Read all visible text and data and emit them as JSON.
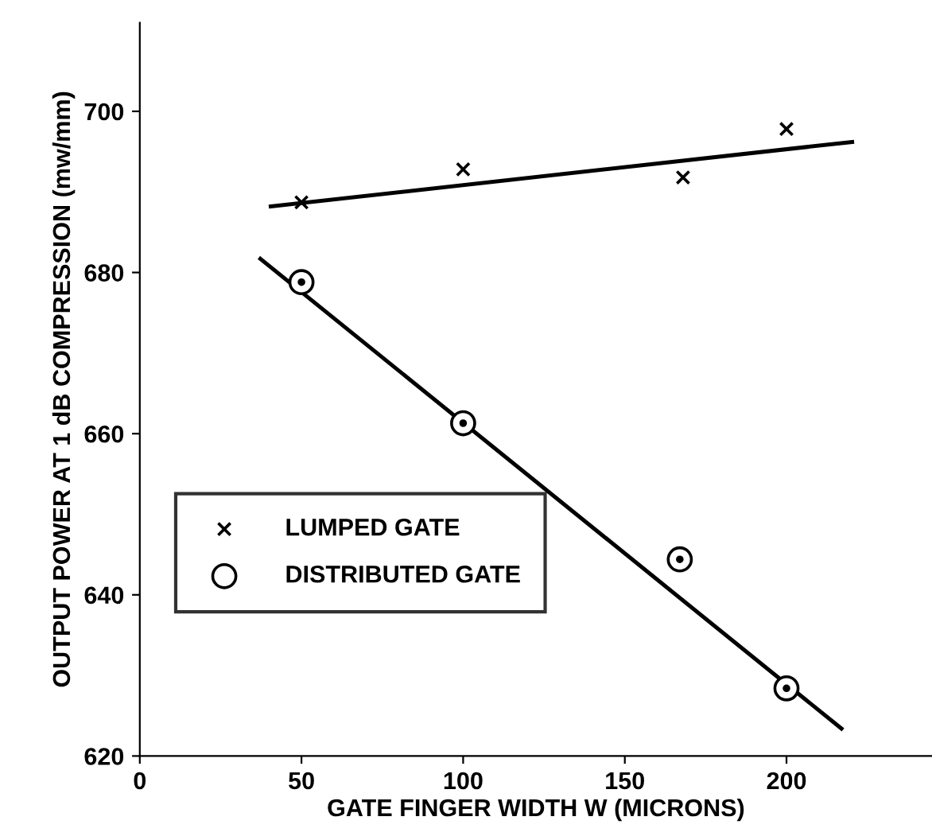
{
  "chart_data": {
    "type": "scatter",
    "xlabel": "GATE FINGER WIDTH W (MICRONS)",
    "ylabel": "OUTPUT POWER AT 1 dB COMPRESSION (mw/mm)",
    "xlim": [
      0,
      245
    ],
    "ylim": [
      620,
      711
    ],
    "xticks": [
      0,
      50,
      100,
      150,
      200
    ],
    "yticks": [
      620,
      640,
      660,
      680,
      700
    ],
    "grid": false,
    "legend": "bottom left",
    "series": [
      {
        "name": "LUMPED GATE",
        "color": "#000000",
        "marker": "cross",
        "x": [
          50,
          100,
          168,
          200
        ],
        "values": [
          688.7,
          692.8,
          691.8,
          697.8
        ]
      },
      {
        "name": "DISTRIBUTED GATE",
        "color": "#000000",
        "marker": "circle",
        "x": [
          50,
          100,
          167,
          200
        ],
        "values": [
          678.8,
          661.3,
          644.4,
          628.4
        ]
      },
      {
        "type": "line",
        "color": "#000000",
        "marker": "none",
        "x": [
          40.5,
          220.3
        ],
        "values": [
          688.2,
          696.2
        ]
      },
      {
        "type": "line",
        "color": "#000000",
        "marker": "none",
        "x": [
          37.3,
          217
        ],
        "values": [
          681.7,
          623.4
        ]
      }
    ]
  }
}
